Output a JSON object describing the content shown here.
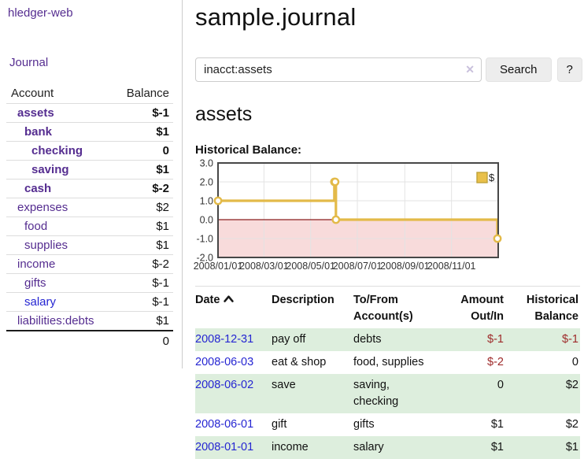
{
  "app": {
    "brand": "hledger-web"
  },
  "sidebar": {
    "journal_link": "Journal",
    "accounts_header": {
      "account": "Account",
      "balance": "Balance"
    },
    "accounts": [
      {
        "name": "assets",
        "balance": "$-1"
      },
      {
        "name": "bank",
        "balance": "$1"
      },
      {
        "name": "checking",
        "balance": "0"
      },
      {
        "name": "saving",
        "balance": "$1"
      },
      {
        "name": "cash",
        "balance": "$-2"
      },
      {
        "name": "expenses",
        "balance": "$2"
      },
      {
        "name": "food",
        "balance": "$1"
      },
      {
        "name": "supplies",
        "balance": "$1"
      },
      {
        "name": "income",
        "balance": "$-2"
      },
      {
        "name": "gifts",
        "balance": "$-1"
      },
      {
        "name": "salary",
        "balance": "$-1"
      },
      {
        "name": "liabilities:debts",
        "balance": "$1"
      }
    ],
    "total": "0"
  },
  "main": {
    "title": "sample.journal",
    "search": {
      "value": "inacct:assets",
      "clear_icon": "✕",
      "search_button": "Search",
      "help_button": "?"
    },
    "account_heading": "assets",
    "chart_title": "Historical Balance:"
  },
  "chart_data": {
    "type": "line",
    "title": "Historical Balance:",
    "step": true,
    "series": [
      {
        "name": "$",
        "points": [
          [
            "2008-01-01",
            1
          ],
          [
            "2008-06-01",
            2
          ],
          [
            "2008-06-02",
            2
          ],
          [
            "2008-06-03",
            0
          ],
          [
            "2008-12-31",
            -1
          ]
        ]
      }
    ],
    "x_ticks": [
      "2008/01/01",
      "2008/03/01",
      "2008/05/01",
      "2008/07/01",
      "2008/09/01",
      "2008/11/01"
    ],
    "xlim": [
      "2008-01-01",
      "2009-01-01"
    ],
    "y_ticks": [
      3,
      2,
      1,
      0,
      -1,
      -2
    ],
    "ylim": [
      -2,
      3
    ],
    "grid": true,
    "legend": {
      "label": "$",
      "position": "top-right"
    },
    "colors": {
      "line": "#e3ba49",
      "marker_fill": "#ffffff",
      "negative_region": "#f8dbdb",
      "zero_line": "#8b1d1d",
      "grid": "#e3e3e3",
      "border": "#474747",
      "legend_swatch": "#e9c04a",
      "legend_swatch_border": "#bfa23a"
    }
  },
  "table": {
    "headers": {
      "date": "Date",
      "description": "Description",
      "tofrom_1": "To/From",
      "tofrom_2": "Account(s)",
      "amount_1": "Amount",
      "amount_2": "Out/In",
      "balance_1": "Historical",
      "balance_2": "Balance"
    },
    "rows": [
      {
        "date": "2008-12-31",
        "description": "pay off",
        "accounts": "debts",
        "amount": "$-1",
        "balance": "$-1"
      },
      {
        "date": "2008-06-03",
        "description": "eat & shop",
        "accounts": "food, supplies",
        "amount": "$-2",
        "balance": "0"
      },
      {
        "date": "2008-06-02",
        "description": "save",
        "accounts": "saving, checking",
        "amount": "0",
        "balance": "$2"
      },
      {
        "date": "2008-06-01",
        "description": "gift",
        "accounts": "gifts",
        "amount": "$1",
        "balance": "$2"
      },
      {
        "date": "2008-01-01",
        "description": "income",
        "accounts": "salary",
        "amount": "$1",
        "balance": "$1"
      }
    ]
  }
}
